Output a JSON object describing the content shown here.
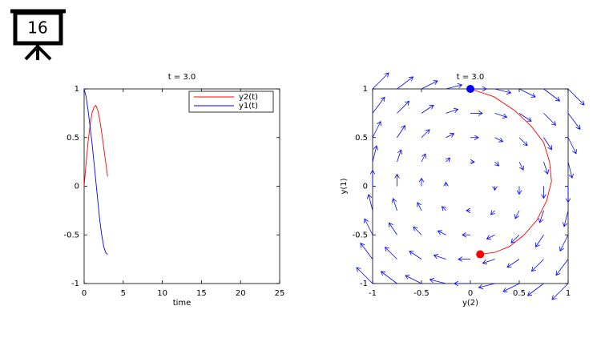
{
  "slide_number": "16",
  "chart_data": [
    {
      "type": "line",
      "title": "t = 3.0",
      "xlabel": "time",
      "x": [
        0,
        0.25,
        0.5,
        0.75,
        1,
        1.25,
        1.5,
        1.75,
        2,
        2.25,
        2.5,
        2.75,
        3
      ],
      "series": [
        {
          "name": "y2(t)",
          "color": "#ff0000",
          "values": [
            0,
            0.24,
            0.45,
            0.62,
            0.75,
            0.81,
            0.83,
            0.78,
            0.68,
            0.55,
            0.4,
            0.25,
            0.1
          ]
        },
        {
          "name": "y1(t)",
          "color": "#0000ff",
          "values": [
            1,
            0.92,
            0.78,
            0.62,
            0.45,
            0.25,
            0.05,
            -0.15,
            -0.35,
            -0.5,
            -0.62,
            -0.68,
            -0.7
          ]
        }
      ],
      "xlim": [
        0,
        25
      ],
      "ylim": [
        -1,
        1
      ],
      "xticks": [
        0,
        5,
        10,
        15,
        20,
        25
      ],
      "yticks": [
        1,
        0.5,
        0,
        -0.5,
        -1
      ],
      "legend": "upper right"
    },
    {
      "type": "phase",
      "title": "t = 3.0",
      "xlabel": "y(2)",
      "ylabel": "y(1)",
      "x": [
        0,
        0.24,
        0.45,
        0.62,
        0.75,
        0.81,
        0.83,
        0.78,
        0.68,
        0.55,
        0.4,
        0.25,
        0.1
      ],
      "y": [
        1,
        0.92,
        0.78,
        0.62,
        0.45,
        0.25,
        0.05,
        -0.15,
        -0.35,
        -0.5,
        -0.62,
        -0.68,
        -0.7
      ],
      "color": "#ff0000",
      "start_color": "#0000ff",
      "end_color": "#ff0000",
      "xlim": [
        -1,
        1
      ],
      "ylim": [
        -1,
        1
      ],
      "xticks": [
        -1,
        -0.5,
        0,
        0.5,
        1
      ],
      "yticks": [
        1,
        0.5,
        0,
        -0.5,
        -1
      ],
      "quiver": {
        "color": "#0000ff",
        "x": [
          -1,
          -0.75,
          -0.5,
          -0.25,
          0,
          0.25,
          0.5,
          0.75,
          1
        ],
        "y": [
          -1,
          -0.75,
          -0.5,
          -0.25,
          0,
          0.25,
          0.5,
          0.75,
          1
        ],
        "u": [
          [
            -1,
            -1,
            -1,
            -1,
            -1,
            -1,
            -1,
            -1,
            -1
          ],
          [
            -0.75,
            -0.75,
            -0.75,
            -0.75,
            -0.75,
            -0.75,
            -0.75,
            -0.75,
            -0.75
          ],
          [
            -0.5,
            -0.5,
            -0.5,
            -0.5,
            -0.5,
            -0.5,
            -0.5,
            -0.5,
            -0.5
          ],
          [
            -0.25,
            -0.25,
            -0.25,
            -0.25,
            -0.25,
            -0.25,
            -0.25,
            -0.25,
            -0.25
          ],
          [
            0,
            0,
            0,
            0,
            0,
            0,
            0,
            0,
            0
          ],
          [
            0.25,
            0.25,
            0.25,
            0.25,
            0.25,
            0.25,
            0.25,
            0.25,
            0.25
          ],
          [
            0.5,
            0.5,
            0.5,
            0.5,
            0.5,
            0.5,
            0.5,
            0.5,
            0.5
          ],
          [
            0.75,
            0.75,
            0.75,
            0.75,
            0.75,
            0.75,
            0.75,
            0.75,
            0.75
          ],
          [
            1,
            1,
            1,
            1,
            1,
            1,
            1,
            1,
            1
          ]
        ],
        "v": [
          [
            1,
            0.75,
            0.5,
            0.25,
            0,
            -0.25,
            -0.5,
            -0.75,
            -1
          ],
          [
            1,
            0.75,
            0.5,
            0.25,
            0,
            -0.25,
            -0.5,
            -0.75,
            -1
          ],
          [
            1,
            0.75,
            0.5,
            0.25,
            0,
            -0.25,
            -0.5,
            -0.75,
            -1
          ],
          [
            1,
            0.75,
            0.5,
            0.25,
            0,
            -0.25,
            -0.5,
            -0.75,
            -1
          ],
          [
            1,
            0.75,
            0.5,
            0.25,
            0,
            -0.25,
            -0.5,
            -0.75,
            -1
          ],
          [
            1,
            0.75,
            0.5,
            0.25,
            0,
            -0.25,
            -0.5,
            -0.75,
            -1
          ],
          [
            1,
            0.75,
            0.5,
            0.25,
            0,
            -0.25,
            -0.5,
            -0.75,
            -1
          ],
          [
            1,
            0.75,
            0.5,
            0.25,
            0,
            -0.25,
            -0.5,
            -0.75,
            -1
          ],
          [
            1,
            0.75,
            0.5,
            0.25,
            0,
            -0.25,
            -0.5,
            -0.75,
            -1
          ]
        ]
      }
    }
  ]
}
